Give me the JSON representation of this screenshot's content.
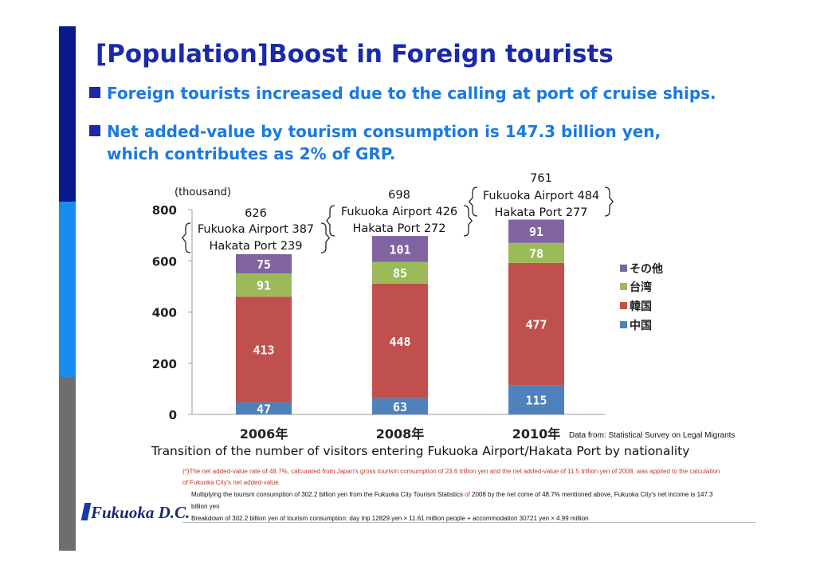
{
  "slide": {
    "title": "[Population]Boost in Foreign tourists",
    "bullet1": "Foreign tourists increased due to the calling at port of cruise ships.",
    "bullet2_line1": "Net added-value by tourism consumption is 147.3 billion yen,",
    "bullet2_line2": "which contributes as 2% of GRP.",
    "caption": "Transition of the number of visitors entering Fukuoka Airport/Hakata Port by nationality",
    "source": "Data from: Statistical Survey on Legal Migrants",
    "note_red_line1": "(*)The net added-value rate of 48.7%, calcurated from Japan's gross tourism consumption of 23.6 trillion yen and the net added-value of  11.5 trillion yen of 2008, was applied to the calculation",
    "note_red_line2": "of Fukuoka City's net added-value.",
    "note2_part1": "Multiplying the  tourism consumption of 302.2 billion yen from the Fukuoka City Tourism Statistics ",
    "note2_of": "of",
    "note2_part2": " 2008 by the net come of 48.7% mentioned above, Fukuoka City's net income is 147.3",
    "note2_line2": "billion yen",
    "note3": "Breakdown of 302.2 billion yen of tourism consumption: day trip 12829 yen × 11.61 million people + accommodation 30721 yen × 4.99 million",
    "logo": "Fukuoka D.C."
  },
  "colors": {
    "china": "#4f81bd",
    "korea": "#c0504d",
    "taiwan": "#9bbb59",
    "other": "#8064a2"
  },
  "chart_data": {
    "type": "bar",
    "stacked": true,
    "unit_label": "(thousand)",
    "categories": [
      "2006年",
      "2008年",
      "2010年"
    ],
    "series": [
      {
        "name": "中国",
        "values": [
          47,
          63,
          115
        ]
      },
      {
        "name": "韓国",
        "values": [
          413,
          448,
          477
        ]
      },
      {
        "name": "台湾",
        "values": [
          91,
          85,
          78
        ]
      },
      {
        "name": "その他",
        "values": [
          75,
          101,
          91
        ]
      }
    ],
    "ylim": [
      0,
      800
    ],
    "yticks": [
      0,
      200,
      400,
      600,
      800
    ],
    "legend_position": "right",
    "grid": false,
    "annotations": [
      {
        "total": "626",
        "airport": "Fukuoka Airport 387",
        "port": "Hakata Port 239"
      },
      {
        "total": "698",
        "airport": "Fukuoka Airport 426",
        "port": "Hakata Port 272"
      },
      {
        "total": "761",
        "airport": "Fukuoka Airport 484",
        "port": "Hakata Port 277"
      }
    ]
  }
}
